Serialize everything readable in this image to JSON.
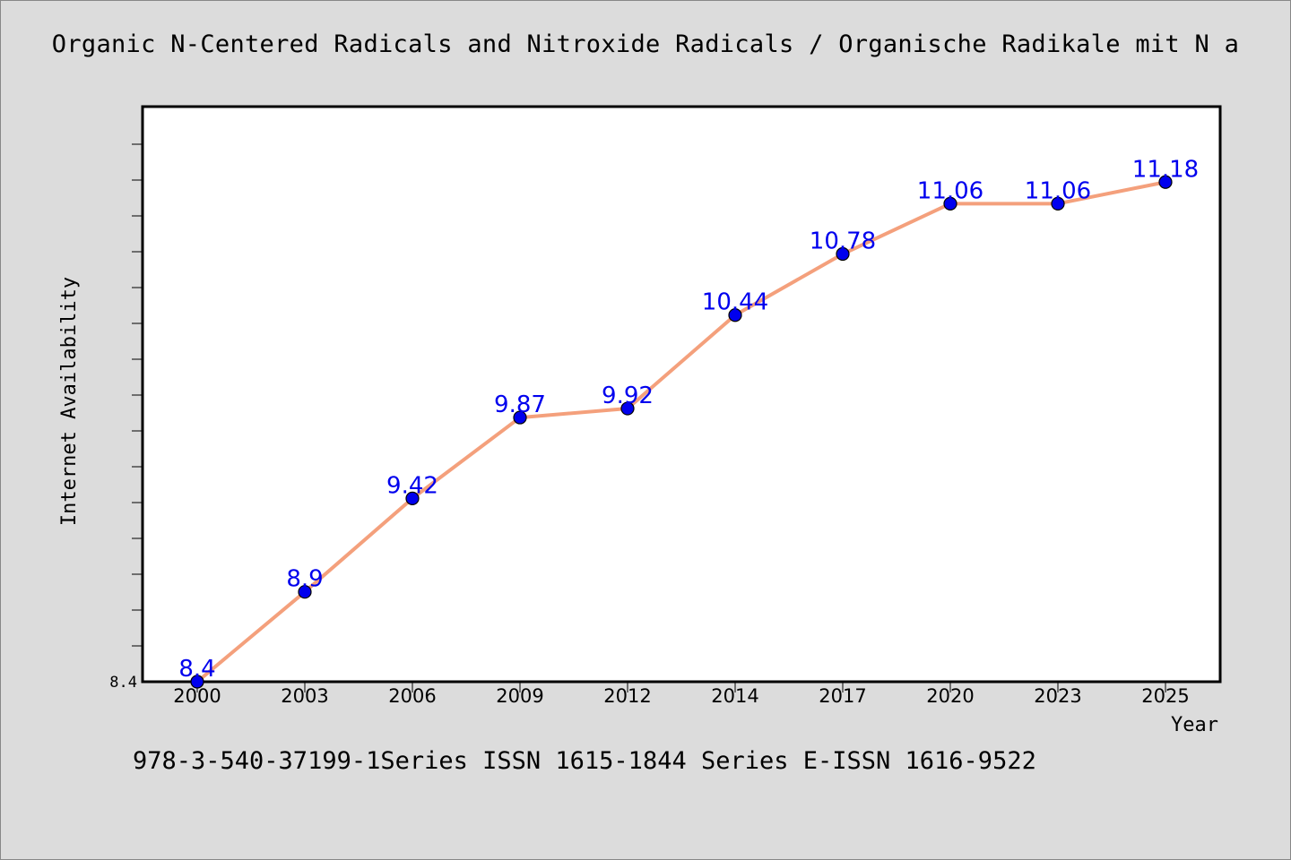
{
  "chart_data": {
    "type": "line",
    "title": "Organic N-Centered Radicals and Nitroxide Radicals / Organische Radikale mit N a",
    "xlabel": "Year",
    "ylabel": "Internet Availability",
    "categories": [
      "2000",
      "2003",
      "2006",
      "2009",
      "2012",
      "2014",
      "2017",
      "2020",
      "2023",
      "2025"
    ],
    "series": [
      {
        "values": [
          8.4,
          8.9,
          9.42,
          9.87,
          9.92,
          10.44,
          10.78,
          11.06,
          11.06,
          11.18
        ],
        "labels": [
          "8.4",
          "8.9",
          "9.42",
          "9.87",
          "9.92",
          "10.44",
          "10.78",
          "11.06",
          "11.06",
          "11.18"
        ]
      }
    ],
    "ylim": [
      8.4,
      11.6
    ],
    "y_tick_labels": [
      "8.4"
    ],
    "grid": false,
    "colors": {
      "line": "#f4a07c",
      "marker": "#0000ee",
      "label": "#0000ee",
      "background": "#dcdcdc",
      "plot_background": "#ffffff"
    }
  },
  "footer": "978-3-540-37199-1Series ISSN 1615-1844 Series E-ISSN 1616-9522"
}
